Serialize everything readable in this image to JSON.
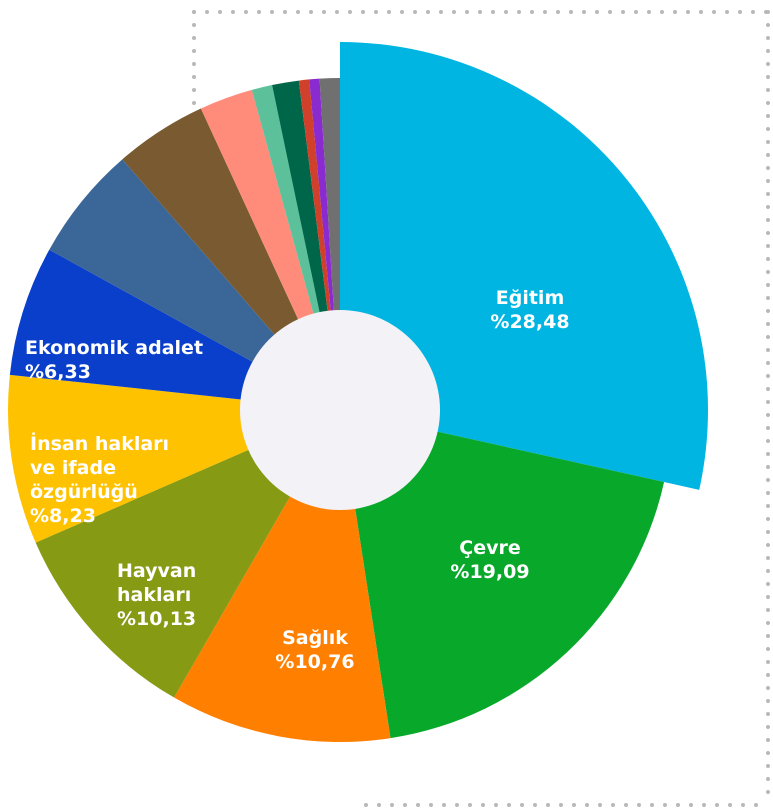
{
  "chart_data": {
    "type": "pie",
    "donut": true,
    "categories": [
      "Eğitim",
      "Çevre",
      "Sağlık",
      "Hayvan hakları",
      "İnsan hakları ve ifade özgürlüğü",
      "Ekonomik adalet",
      null,
      null,
      null,
      null,
      null,
      null,
      null,
      null
    ],
    "values": [
      28.48,
      19.09,
      10.76,
      10.13,
      8.23,
      6.33,
      5.6,
      4.5,
      2.6,
      1.0,
      1.3,
      0.5,
      0.5,
      0.98
    ],
    "value_labels": [
      "%28,48",
      "%19,09",
      "%10,76",
      "%10,13",
      "%8,23",
      "%6,33",
      null,
      null,
      null,
      null,
      null,
      null,
      null,
      null
    ],
    "colors": [
      "#00b5e2",
      "#08a82a",
      "#ff7f00",
      "#869a14",
      "#ffc200",
      "#0a3fcc",
      "#3a6698",
      "#7a5a30",
      "#ff8c7a",
      "#5cc09a",
      "#00664a",
      "#d0402a",
      "#8a2bd0",
      "#707070"
    ]
  }
}
